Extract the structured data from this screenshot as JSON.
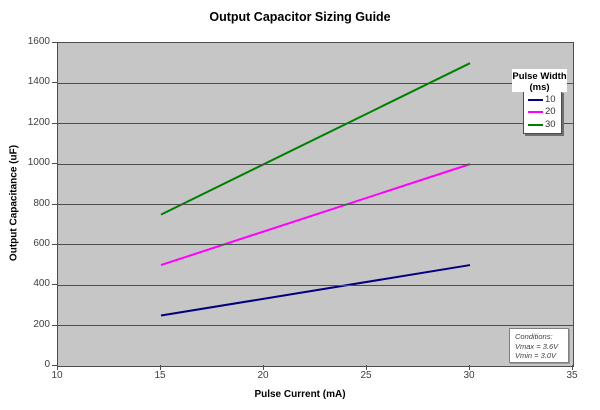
{
  "chart_data": {
    "type": "line",
    "title": "Output Capacitor Sizing Guide",
    "xlabel": "Pulse Current (mA)",
    "ylabel": "Output Capacitance (uF)",
    "xlim": [
      10,
      35
    ],
    "ylim": [
      0,
      1600
    ],
    "xticks": [
      10,
      15,
      20,
      25,
      30,
      35
    ],
    "yticks": [
      0,
      200,
      400,
      600,
      800,
      1000,
      1200,
      1400,
      1600
    ],
    "grid": "horizontal-only",
    "plot_bg_color": "#C6C6C6",
    "gridline_color": "#4D4D4D",
    "legend_position": "upper-right",
    "x": [
      15,
      30
    ],
    "series": [
      {
        "name": "10",
        "values": [
          250,
          500
        ],
        "color": "#000080"
      },
      {
        "name": "20",
        "values": [
          500,
          1000
        ],
        "color": "#FF00FF"
      },
      {
        "name": "30",
        "values": [
          750,
          1500
        ],
        "color": "#008000"
      }
    ]
  },
  "legend": {
    "title_line1": "Pulse Width",
    "title_line2": "(ms)"
  },
  "annotation": {
    "line1": "Conditions:",
    "line2": "Vmax = 3.6V",
    "line3": "Vmin = 3.0V"
  }
}
